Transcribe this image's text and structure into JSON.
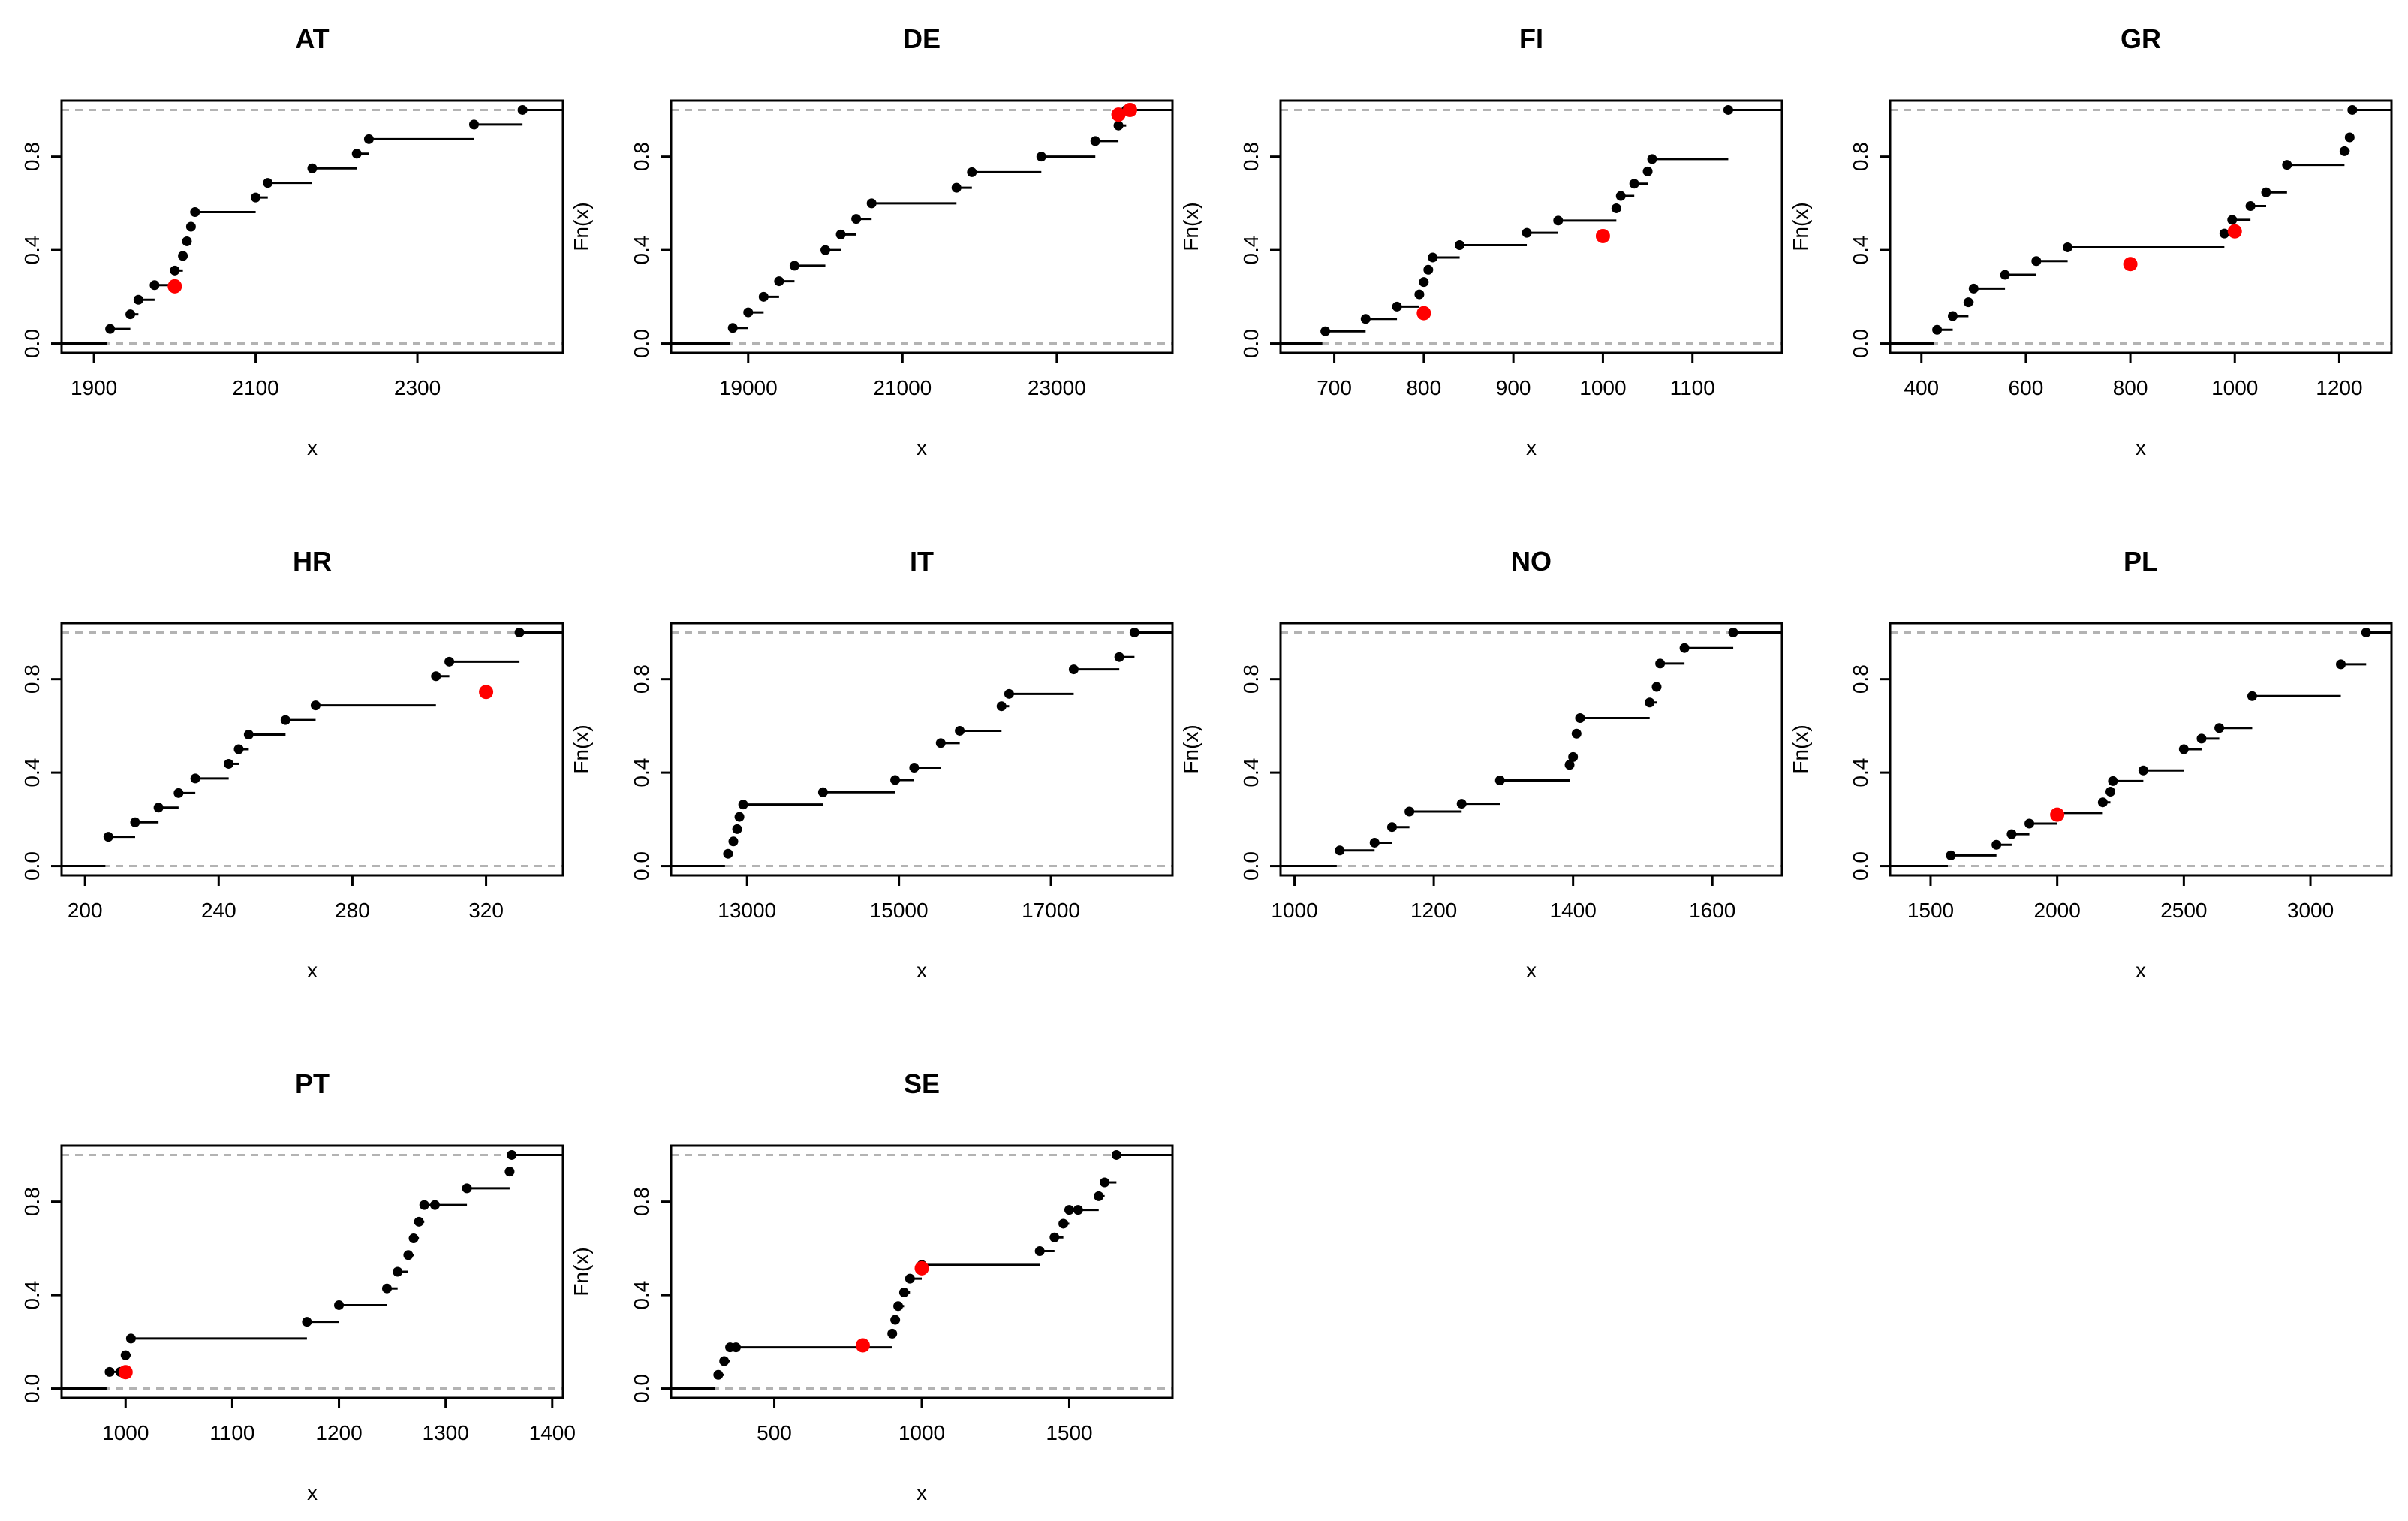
{
  "figure": {
    "xlabel": "x",
    "ylabel": "Fn(x)"
  },
  "colors": {
    "step": "#000000",
    "reference_line": "#b3b3b3",
    "highlight": "#ff0000"
  },
  "chart_data": [
    {
      "type": "ecdf",
      "title": "AT",
      "xlabel": "x",
      "ylabel": "Fn(x)",
      "xlim": [
        1860,
        2480
      ],
      "ylim": [
        -0.04,
        1.04
      ],
      "xticks": [
        1900,
        2100,
        2300
      ],
      "yticks": [
        0.0,
        0.4,
        0.8
      ],
      "ytick_labels": [
        "0.0",
        "0.4",
        "0.8"
      ],
      "x": [
        1920,
        1945,
        1955,
        1975,
        2000,
        2010,
        2015,
        2020,
        2025,
        2100,
        2115,
        2170,
        2225,
        2240,
        2370,
        2430
      ],
      "y": [
        0.0625,
        0.125,
        0.1875,
        0.25,
        0.3125,
        0.375,
        0.4375,
        0.5,
        0.5625,
        0.625,
        0.6875,
        0.75,
        0.8125,
        0.875,
        0.9375,
        1.0
      ],
      "highlight": [
        {
          "x": 2000,
          "y": 0.245
        }
      ],
      "grid": false
    },
    {
      "type": "ecdf",
      "title": "DE",
      "xlabel": "x",
      "ylabel": "Fn(x)",
      "xlim": [
        18000,
        24500
      ],
      "ylim": [
        -0.04,
        1.04
      ],
      "xticks": [
        19000,
        21000,
        23000
      ],
      "yticks": [
        0.0,
        0.4,
        0.8
      ],
      "ytick_labels": [
        "0.0",
        "0.4",
        "0.8"
      ],
      "x": [
        18800,
        19000,
        19200,
        19400,
        19600,
        20000,
        20200,
        20400,
        20600,
        21700,
        21900,
        22800,
        23500,
        23800,
        23900
      ],
      "y": [
        0.0667,
        0.1333,
        0.2,
        0.2667,
        0.3333,
        0.4,
        0.4667,
        0.5333,
        0.6,
        0.6667,
        0.7333,
        0.8,
        0.8667,
        0.9333,
        1.0
      ],
      "highlight": [
        {
          "x": 23800,
          "y": 0.98
        },
        {
          "x": 23950,
          "y": 1.0
        }
      ],
      "grid": false
    },
    {
      "type": "ecdf",
      "title": "FI",
      "xlabel": "x",
      "ylabel": "Fn(x)",
      "xlim": [
        640,
        1200
      ],
      "ylim": [
        -0.04,
        1.04
      ],
      "xticks": [
        700,
        800,
        900,
        1000,
        1100
      ],
      "yticks": [
        0.0,
        0.4,
        0.8
      ],
      "ytick_labels": [
        "0.0",
        "0.4",
        "0.8"
      ],
      "x": [
        690,
        735,
        770,
        795,
        800,
        805,
        810,
        840,
        915,
        950,
        1015,
        1020,
        1035,
        1050,
        1055,
        1140
      ],
      "y": [
        0.0526,
        0.1053,
        0.1579,
        0.2105,
        0.2632,
        0.3158,
        0.3684,
        0.4211,
        0.4737,
        0.5263,
        0.5789,
        0.6316,
        0.6842,
        0.7368,
        0.7895,
        1.0
      ],
      "highlight": [
        {
          "x": 800,
          "y": 0.13
        },
        {
          "x": 1000,
          "y": 0.46
        }
      ],
      "grid": false
    },
    {
      "type": "ecdf",
      "title": "GR",
      "xlabel": "x",
      "ylabel": "Fn(x)",
      "xlim": [
        340,
        1300
      ],
      "ylim": [
        -0.04,
        1.04
      ],
      "xticks": [
        400,
        600,
        800,
        1000,
        1200
      ],
      "yticks": [
        0.0,
        0.4,
        0.8
      ],
      "ytick_labels": [
        "0.0",
        "0.4",
        "0.8"
      ],
      "x": [
        430,
        460,
        490,
        500,
        560,
        620,
        680,
        980,
        995,
        1030,
        1060,
        1100,
        1210,
        1220,
        1225
      ],
      "y": [
        0.0588,
        0.1176,
        0.1765,
        0.2353,
        0.2941,
        0.3529,
        0.4118,
        0.4706,
        0.5294,
        0.5882,
        0.6471,
        0.7647,
        0.8235,
        0.8824,
        1.0
      ],
      "highlight": [
        {
          "x": 800,
          "y": 0.34
        },
        {
          "x": 1000,
          "y": 0.48
        }
      ],
      "grid": false
    },
    {
      "type": "ecdf",
      "title": "HR",
      "xlabel": "x",
      "ylabel": "Fn(x)",
      "xlim": [
        193,
        343
      ],
      "ylim": [
        -0.04,
        1.04
      ],
      "xticks": [
        200,
        240,
        280,
        320
      ],
      "yticks": [
        0.0,
        0.4,
        0.8
      ],
      "ytick_labels": [
        "0.0",
        "0.4",
        "0.8"
      ],
      "x": [
        207,
        215,
        222,
        228,
        233,
        243,
        246,
        249,
        260,
        269,
        305,
        309,
        330
      ],
      "y": [
        0.125,
        0.1875,
        0.25,
        0.3125,
        0.375,
        0.4375,
        0.5,
        0.5625,
        0.625,
        0.6875,
        0.8125,
        0.875,
        1.0
      ],
      "highlight": [
        {
          "x": 320,
          "y": 0.745
        }
      ],
      "grid": false
    },
    {
      "type": "ecdf",
      "title": "IT",
      "xlabel": "x",
      "ylabel": "Fn(x)",
      "xlim": [
        12000,
        18600
      ],
      "ylim": [
        -0.04,
        1.04
      ],
      "xticks": [
        13000,
        15000,
        17000
      ],
      "yticks": [
        0.0,
        0.4,
        0.8
      ],
      "ytick_labels": [
        "0.0",
        "0.4",
        "0.8"
      ],
      "x": [
        12750,
        12820,
        12870,
        12900,
        12950,
        14000,
        14950,
        15200,
        15550,
        15800,
        16350,
        16450,
        17300,
        17900,
        18100
      ],
      "y": [
        0.0526,
        0.1053,
        0.1579,
        0.2105,
        0.2632,
        0.3158,
        0.3684,
        0.4211,
        0.5263,
        0.5789,
        0.6842,
        0.7368,
        0.8421,
        0.8947,
        1.0
      ],
      "highlight": [],
      "grid": false
    },
    {
      "type": "ecdf",
      "title": "NO",
      "xlabel": "x",
      "ylabel": "Fn(x)",
      "xlim": [
        980,
        1700
      ],
      "ylim": [
        -0.04,
        1.04
      ],
      "xticks": [
        1000,
        1200,
        1400,
        1600
      ],
      "yticks": [
        0.0,
        0.4,
        0.8
      ],
      "ytick_labels": [
        "0.0",
        "0.4",
        "0.8"
      ],
      "x": [
        1065,
        1115,
        1140,
        1165,
        1240,
        1295,
        1395,
        1400,
        1405,
        1410,
        1510,
        1520,
        1525,
        1560,
        1630
      ],
      "y": [
        0.0667,
        0.1,
        0.1667,
        0.2333,
        0.2667,
        0.3667,
        0.4333,
        0.4667,
        0.5667,
        0.6333,
        0.7,
        0.7667,
        0.8667,
        0.9333,
        1.0
      ],
      "highlight": [],
      "grid": false
    },
    {
      "type": "ecdf",
      "title": "PL",
      "xlabel": "x",
      "ylabel": "Fn(x)",
      "xlim": [
        1340,
        3320
      ],
      "ylim": [
        -0.04,
        1.04
      ],
      "xticks": [
        1500,
        2000,
        2500,
        3000
      ],
      "yticks": [
        0.0,
        0.4,
        0.8
      ],
      "ytick_labels": [
        "0.0",
        "0.4",
        "0.8"
      ],
      "x": [
        1580,
        1760,
        1820,
        1890,
        2000,
        2180,
        2210,
        2220,
        2340,
        2500,
        2570,
        2640,
        2770,
        3120,
        3220
      ],
      "y": [
        0.0455,
        0.0909,
        0.1364,
        0.1818,
        0.2273,
        0.2727,
        0.3182,
        0.3636,
        0.4091,
        0.5,
        0.5455,
        0.5909,
        0.7273,
        0.8636,
        1.0
      ],
      "highlight": [
        {
          "x": 2000,
          "y": 0.22
        }
      ],
      "grid": false
    },
    {
      "type": "ecdf",
      "title": "PT",
      "xlabel": "x",
      "ylabel": "Fn(x)",
      "xlim": [
        940,
        1410
      ],
      "ylim": [
        -0.04,
        1.04
      ],
      "xticks": [
        1000,
        1100,
        1200,
        1300,
        1400
      ],
      "yticks": [
        0.0,
        0.4,
        0.8
      ],
      "ytick_labels": [
        "0.0",
        "0.4",
        "0.8"
      ],
      "x": [
        985,
        995,
        1000,
        1005,
        1170,
        1200,
        1245,
        1255,
        1265,
        1270,
        1275,
        1280,
        1290,
        1320,
        1360,
        1362
      ],
      "y": [
        0.0714,
        0.0714,
        0.1429,
        0.2143,
        0.2857,
        0.3571,
        0.4286,
        0.5,
        0.5714,
        0.6429,
        0.7143,
        0.7857,
        0.7857,
        0.8571,
        0.9286,
        1.0
      ],
      "highlight": [
        {
          "x": 1000,
          "y": 0.07
        }
      ],
      "grid": false
    },
    {
      "type": "ecdf",
      "title": "SE",
      "xlabel": "x",
      "ylabel": "Fn(x)",
      "xlim": [
        150,
        1850
      ],
      "ylim": [
        -0.04,
        1.04
      ],
      "xticks": [
        500,
        1000,
        1500
      ],
      "yticks": [
        0.0,
        0.4,
        0.8
      ],
      "ytick_labels": [
        "0.0",
        "0.4",
        "0.8"
      ],
      "x": [
        310,
        330,
        350,
        370,
        900,
        910,
        920,
        940,
        960,
        1000,
        1400,
        1450,
        1480,
        1500,
        1530,
        1600,
        1620,
        1660
      ],
      "y": [
        0.0588,
        0.1176,
        0.1765,
        0.1765,
        0.2353,
        0.2941,
        0.3529,
        0.4118,
        0.4706,
        0.5294,
        0.5882,
        0.6471,
        0.7059,
        0.7647,
        0.7647,
        0.8235,
        0.8824,
        1.0
      ],
      "highlight": [
        {
          "x": 800,
          "y": 0.185
        },
        {
          "x": 1000,
          "y": 0.515
        }
      ],
      "grid": false
    }
  ]
}
